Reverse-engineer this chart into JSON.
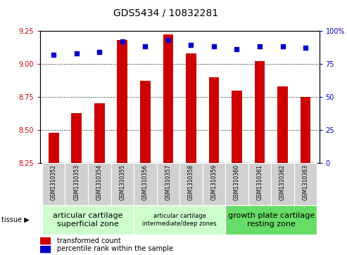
{
  "title": "GDS5434 / 10832281",
  "samples": [
    "GSM1310352",
    "GSM1310353",
    "GSM1310354",
    "GSM1310355",
    "GSM1310356",
    "GSM1310357",
    "GSM1310358",
    "GSM1310359",
    "GSM1310360",
    "GSM1310361",
    "GSM1310362",
    "GSM1310363"
  ],
  "bar_values": [
    8.48,
    8.63,
    8.7,
    9.18,
    8.87,
    9.22,
    9.08,
    8.9,
    8.8,
    9.02,
    8.83,
    8.75
  ],
  "dot_values": [
    82,
    83,
    84,
    92,
    88,
    93,
    89,
    88,
    86,
    88,
    88,
    87
  ],
  "bar_color": "#cc0000",
  "dot_color": "#0000cc",
  "ylim_left": [
    8.25,
    9.25
  ],
  "ylim_right": [
    0,
    100
  ],
  "yticks_left": [
    8.25,
    8.5,
    8.75,
    9.0,
    9.25
  ],
  "yticks_right": [
    0,
    25,
    50,
    75,
    100
  ],
  "grid_values": [
    8.5,
    8.75,
    9.0
  ],
  "tissue_groups": [
    {
      "label": "articular cartilage\nsuperficial zone",
      "indices": [
        0,
        1,
        2,
        3
      ],
      "color": "#ccffcc",
      "fontsize": 8
    },
    {
      "label": "articular cartilage\nintermediate/deep zones",
      "indices": [
        4,
        5,
        6,
        7
      ],
      "color": "#ccffcc",
      "fontsize": 6
    },
    {
      "label": "growth plate cartilage\nresting zone",
      "indices": [
        8,
        9,
        10,
        11
      ],
      "color": "#66dd66",
      "fontsize": 8
    }
  ],
  "tissue_arrow_label": "tissue",
  "legend_bar_label": "transformed count",
  "legend_dot_label": "percentile rank within the sample",
  "bar_width": 0.45,
  "base_value": 8.25,
  "col_bg_color": "#d0d0d0",
  "plot_bg_color": "#ffffff",
  "title_fontsize": 10
}
